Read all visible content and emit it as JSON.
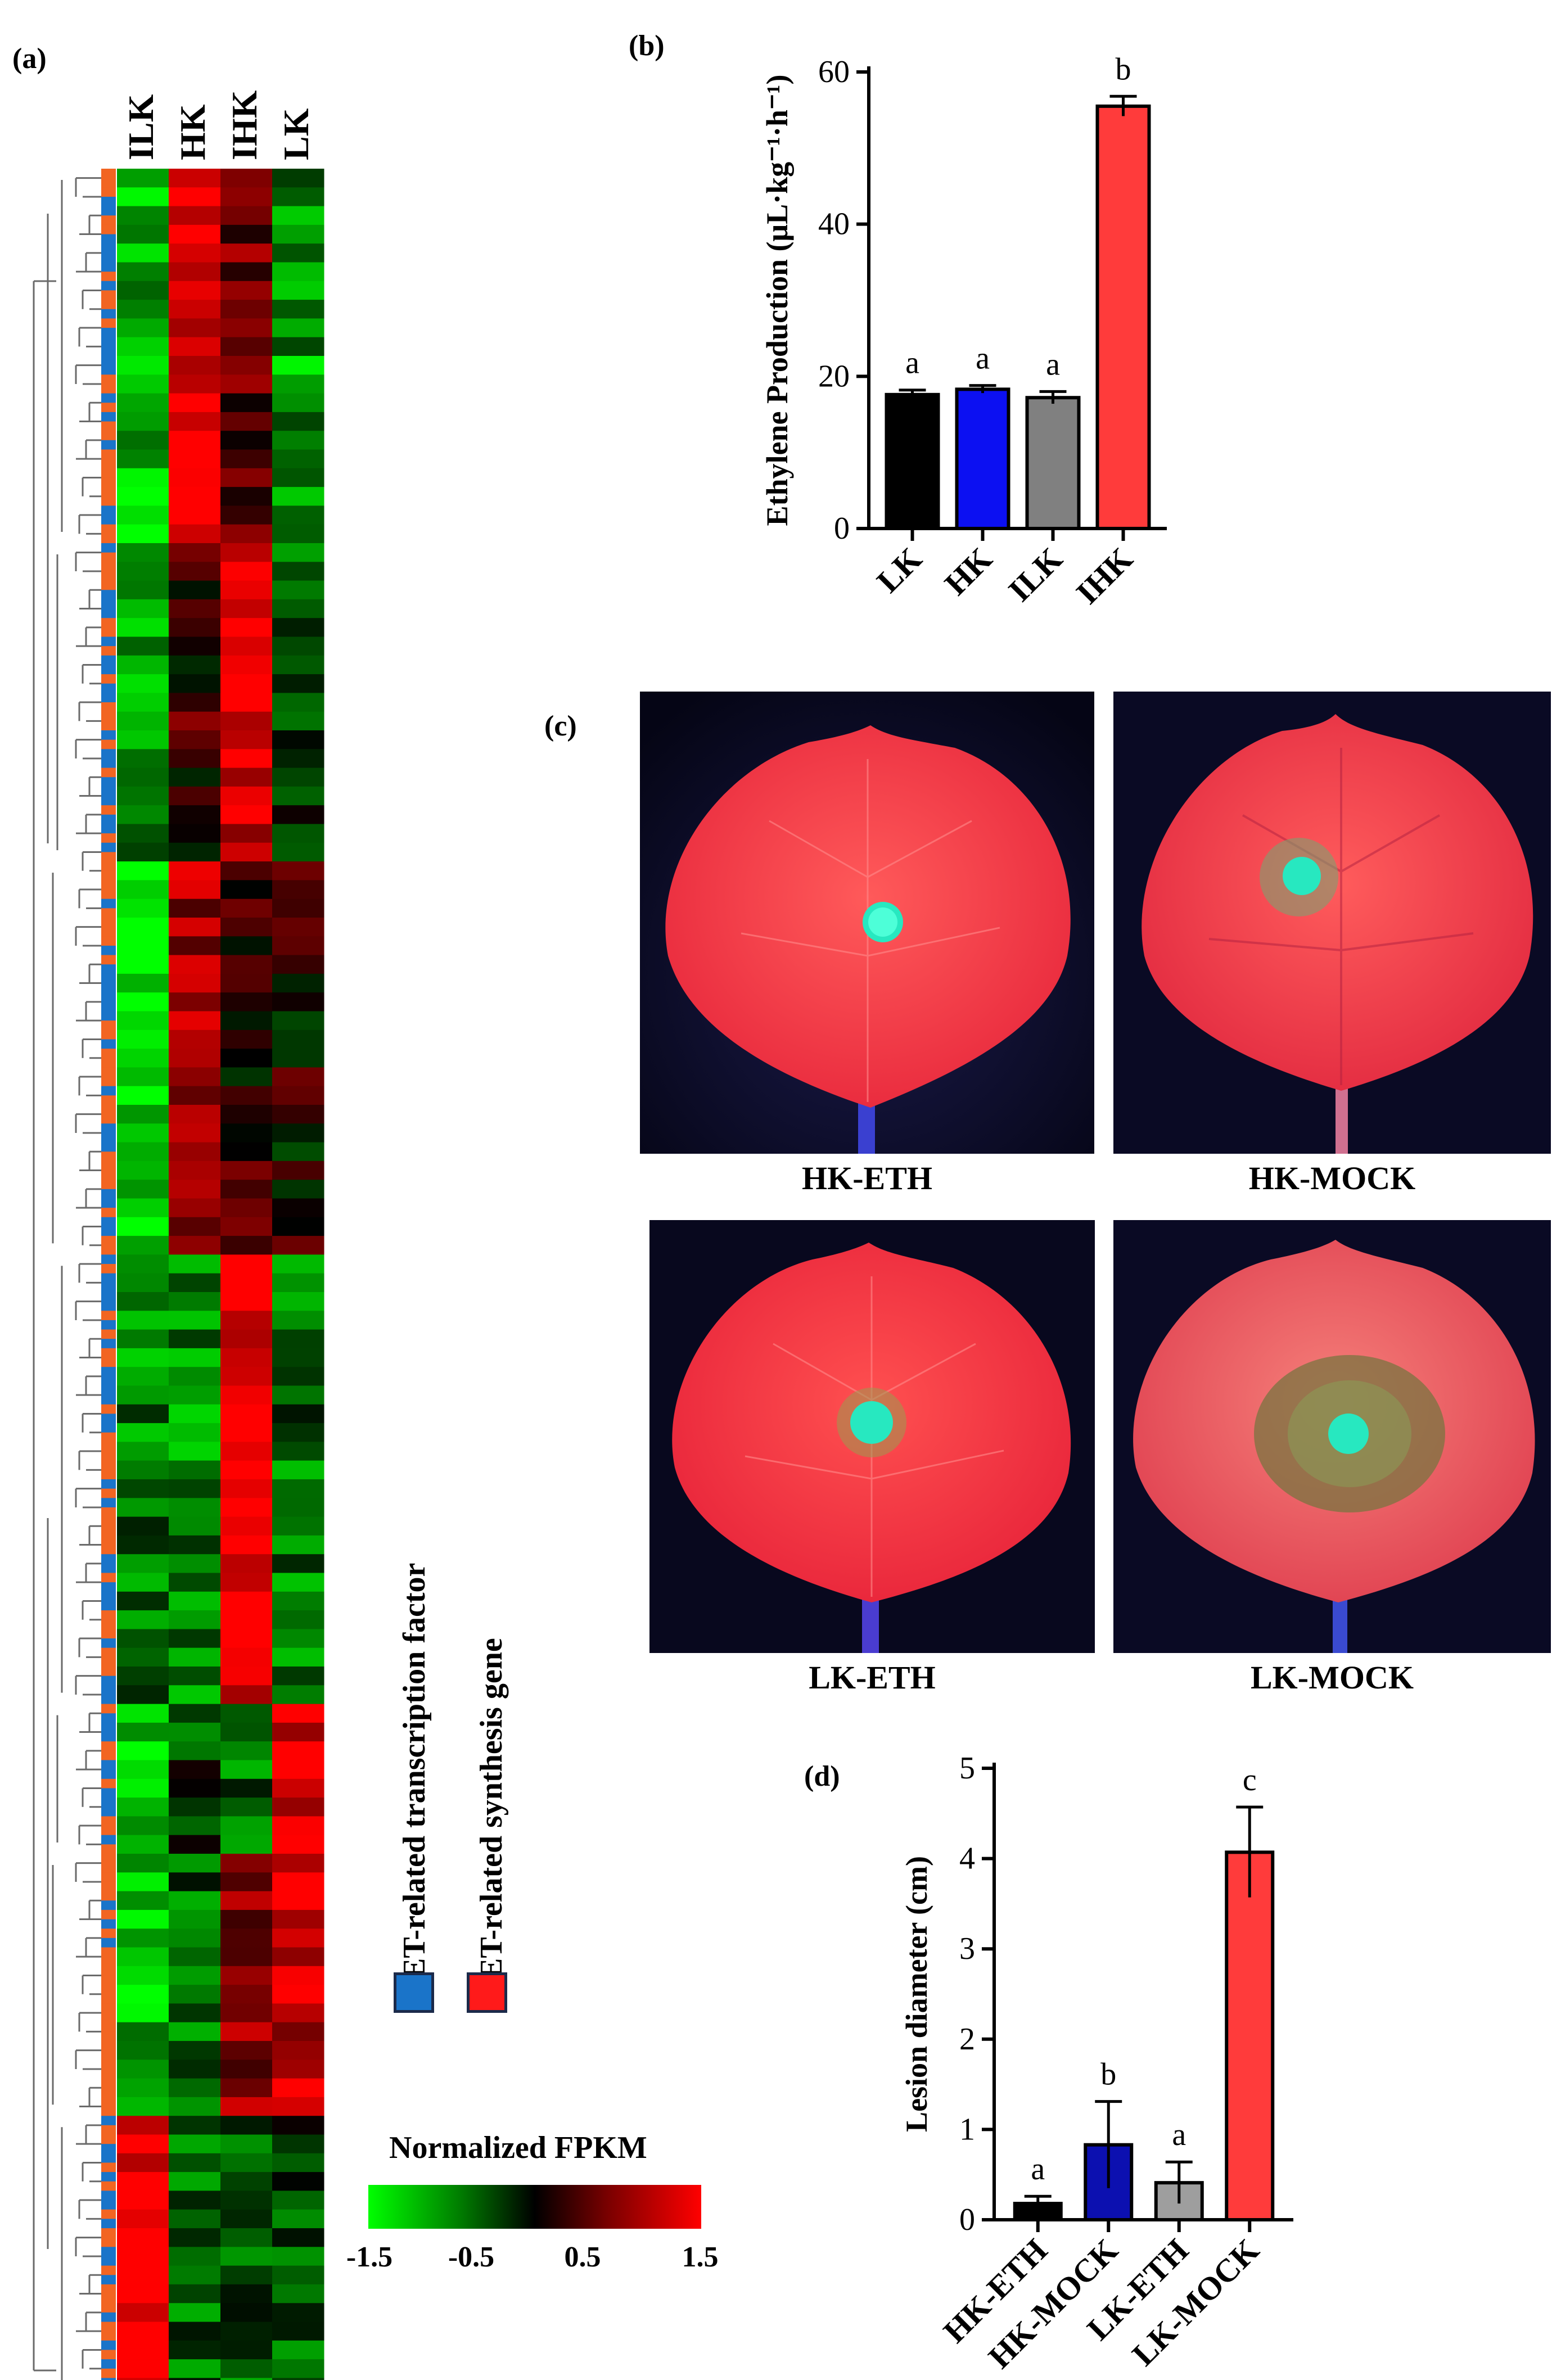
{
  "panels": {
    "a": "(a)",
    "b": "(b)",
    "c": "(c)",
    "d": "(d)"
  },
  "heatmap": {
    "columns": [
      "ILK",
      "HK",
      "IHK",
      "LK"
    ],
    "legend": {
      "title": "Normalized FPKM",
      "ticks": [
        "-1.5",
        "-0.5",
        "0.5",
        "1.5"
      ],
      "min": -1.5,
      "max": 1.5,
      "colors": [
        "#00ff00",
        "#000000",
        "#ff0000"
      ]
    },
    "annotation_legend": [
      {
        "label": "ET-related transcription factor",
        "color": "#1a74c9"
      },
      {
        "label": "ET-related synthesis gene",
        "color": "#ff1a1a"
      }
    ],
    "row_annotation_colors": [
      "#1a74c9",
      "#f26522"
    ]
  },
  "chart_data": [
    {
      "type": "bar",
      "id": "ethylene",
      "categories": [
        "LK",
        "HK",
        "ILK",
        "IHK"
      ],
      "values": [
        17.6,
        18.3,
        17.2,
        55.5
      ],
      "errors": [
        0.6,
        0.5,
        0.8,
        1.3
      ],
      "letters": [
        "a",
        "a",
        "a",
        "b"
      ],
      "colors": [
        "#000000",
        "#0c10f2",
        "#808080",
        "#ff3b3b"
      ],
      "ylabel": "Ethylene Production (μL·kg⁻¹·h⁻¹)",
      "yticks": [
        "0",
        "20",
        "40",
        "60"
      ],
      "ylim": [
        0,
        60
      ]
    },
    {
      "type": "bar",
      "id": "lesion",
      "categories": [
        "HK-ETH",
        "HK-MOCK",
        "LK-ETH",
        "LK-MOCK"
      ],
      "values": [
        0.18,
        0.83,
        0.41,
        4.07
      ],
      "errors": [
        0.08,
        0.48,
        0.23,
        0.5
      ],
      "letters": [
        "a",
        "b",
        "a",
        "c"
      ],
      "colors": [
        "#000000",
        "#0c10b0",
        "#9e9e9e",
        "#ff3b3b"
      ],
      "ylabel": "Lesion diameter (cm)",
      "yticks": [
        "0",
        "1",
        "2",
        "3",
        "4",
        "5"
      ],
      "ylim": [
        0,
        5
      ]
    }
  ],
  "photos": [
    {
      "caption": "HK-ETH"
    },
    {
      "caption": "HK-MOCK"
    },
    {
      "caption": "LK-ETH"
    },
    {
      "caption": "LK-MOCK"
    }
  ]
}
